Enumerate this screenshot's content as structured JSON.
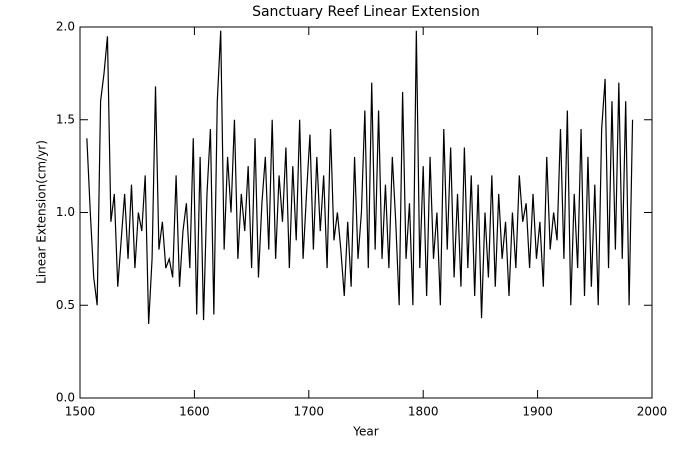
{
  "chart_data": {
    "type": "line",
    "title": "Sanctuary Reef Linear Extension",
    "x_label": "Year",
    "y_label": "Linear Extension(cm/yr)",
    "xlim": [
      1500,
      2000
    ],
    "xticks": [
      1500,
      1600,
      1700,
      1800,
      1900,
      2000
    ],
    "ylim": [
      0,
      2
    ],
    "yticks": [
      {
        "value": 0,
        "label": "0.0"
      },
      0.5,
      {
        "value": 1,
        "label": "1.0"
      },
      1.5,
      {
        "value": 2,
        "label": "2.0"
      }
    ],
    "color": "#000000",
    "x": [
      1506,
      1509,
      1512,
      1515,
      1518,
      1521,
      1524,
      1527,
      1530,
      1533,
      1536,
      1539,
      1542,
      1545,
      1548,
      1551,
      1554,
      1557,
      1560,
      1563,
      1566,
      1569,
      1572,
      1575,
      1578,
      1581,
      1584,
      1587,
      1590,
      1593,
      1596,
      1599,
      1602,
      1605,
      1608,
      1611,
      1614,
      1617,
      1620,
      1623,
      1626,
      1629,
      1632,
      1635,
      1638,
      1641,
      1644,
      1647,
      1650,
      1653,
      1656,
      1659,
      1662,
      1665,
      1668,
      1671,
      1674,
      1677,
      1680,
      1683,
      1686,
      1689,
      1692,
      1695,
      1698,
      1701,
      1704,
      1707,
      1710,
      1713,
      1716,
      1719,
      1722,
      1725,
      1728,
      1731,
      1734,
      1737,
      1740,
      1743,
      1746,
      1749,
      1752,
      1755,
      1758,
      1761,
      1764,
      1767,
      1770,
      1773,
      1776,
      1779,
      1782,
      1785,
      1788,
      1791,
      1794,
      1797,
      1800,
      1803,
      1806,
      1809,
      1812,
      1815,
      1818,
      1821,
      1824,
      1827,
      1830,
      1833,
      1836,
      1839,
      1842,
      1845,
      1848,
      1851,
      1854,
      1857,
      1860,
      1863,
      1866,
      1869,
      1872,
      1875,
      1878,
      1881,
      1884,
      1887,
      1890,
      1893,
      1896,
      1899,
      1902,
      1905,
      1908,
      1911,
      1914,
      1917,
      1920,
      1923,
      1926,
      1929,
      1932,
      1935,
      1938,
      1941,
      1944,
      1947,
      1950,
      1953,
      1956,
      1959,
      1962,
      1965,
      1968,
      1971,
      1974,
      1977,
      1980,
      1983
    ],
    "values": [
      1.4,
      1.0,
      0.65,
      0.5,
      1.6,
      1.75,
      1.95,
      0.95,
      1.1,
      0.6,
      0.85,
      1.1,
      0.75,
      1.15,
      0.7,
      1.0,
      0.9,
      1.2,
      0.4,
      0.75,
      1.68,
      0.8,
      0.95,
      0.7,
      0.75,
      0.65,
      1.2,
      0.6,
      0.9,
      1.05,
      0.7,
      1.4,
      0.45,
      1.3,
      0.42,
      1.1,
      1.45,
      0.45,
      1.6,
      1.98,
      0.8,
      1.3,
      1.0,
      1.5,
      0.75,
      1.1,
      0.9,
      1.25,
      0.7,
      1.4,
      0.65,
      1.05,
      1.3,
      0.8,
      1.5,
      0.75,
      1.2,
      0.95,
      1.35,
      0.7,
      1.25,
      0.85,
      1.5,
      0.75,
      1.1,
      1.42,
      0.8,
      1.3,
      0.9,
      1.2,
      0.7,
      1.45,
      0.85,
      1.0,
      0.8,
      0.55,
      0.95,
      0.6,
      1.3,
      0.75,
      1.0,
      1.55,
      0.7,
      1.7,
      0.8,
      1.55,
      0.75,
      1.15,
      0.7,
      1.3,
      0.95,
      0.5,
      1.65,
      0.75,
      1.05,
      0.5,
      1.98,
      0.7,
      1.25,
      0.55,
      1.3,
      0.75,
      1.0,
      0.5,
      1.45,
      0.8,
      1.35,
      0.65,
      1.1,
      0.6,
      1.35,
      0.7,
      1.2,
      0.55,
      1.15,
      0.43,
      1.0,
      0.65,
      1.2,
      0.6,
      1.1,
      0.75,
      0.95,
      0.55,
      1.0,
      0.7,
      1.2,
      0.95,
      1.05,
      0.7,
      1.1,
      0.75,
      0.95,
      0.6,
      1.3,
      0.8,
      1.0,
      0.85,
      1.45,
      0.75,
      1.55,
      0.5,
      1.1,
      0.7,
      1.45,
      0.55,
      1.3,
      0.6,
      1.15,
      0.5,
      1.45,
      1.72,
      0.7,
      1.6,
      0.8,
      1.7,
      0.75,
      1.6,
      0.5,
      1.5
    ]
  }
}
